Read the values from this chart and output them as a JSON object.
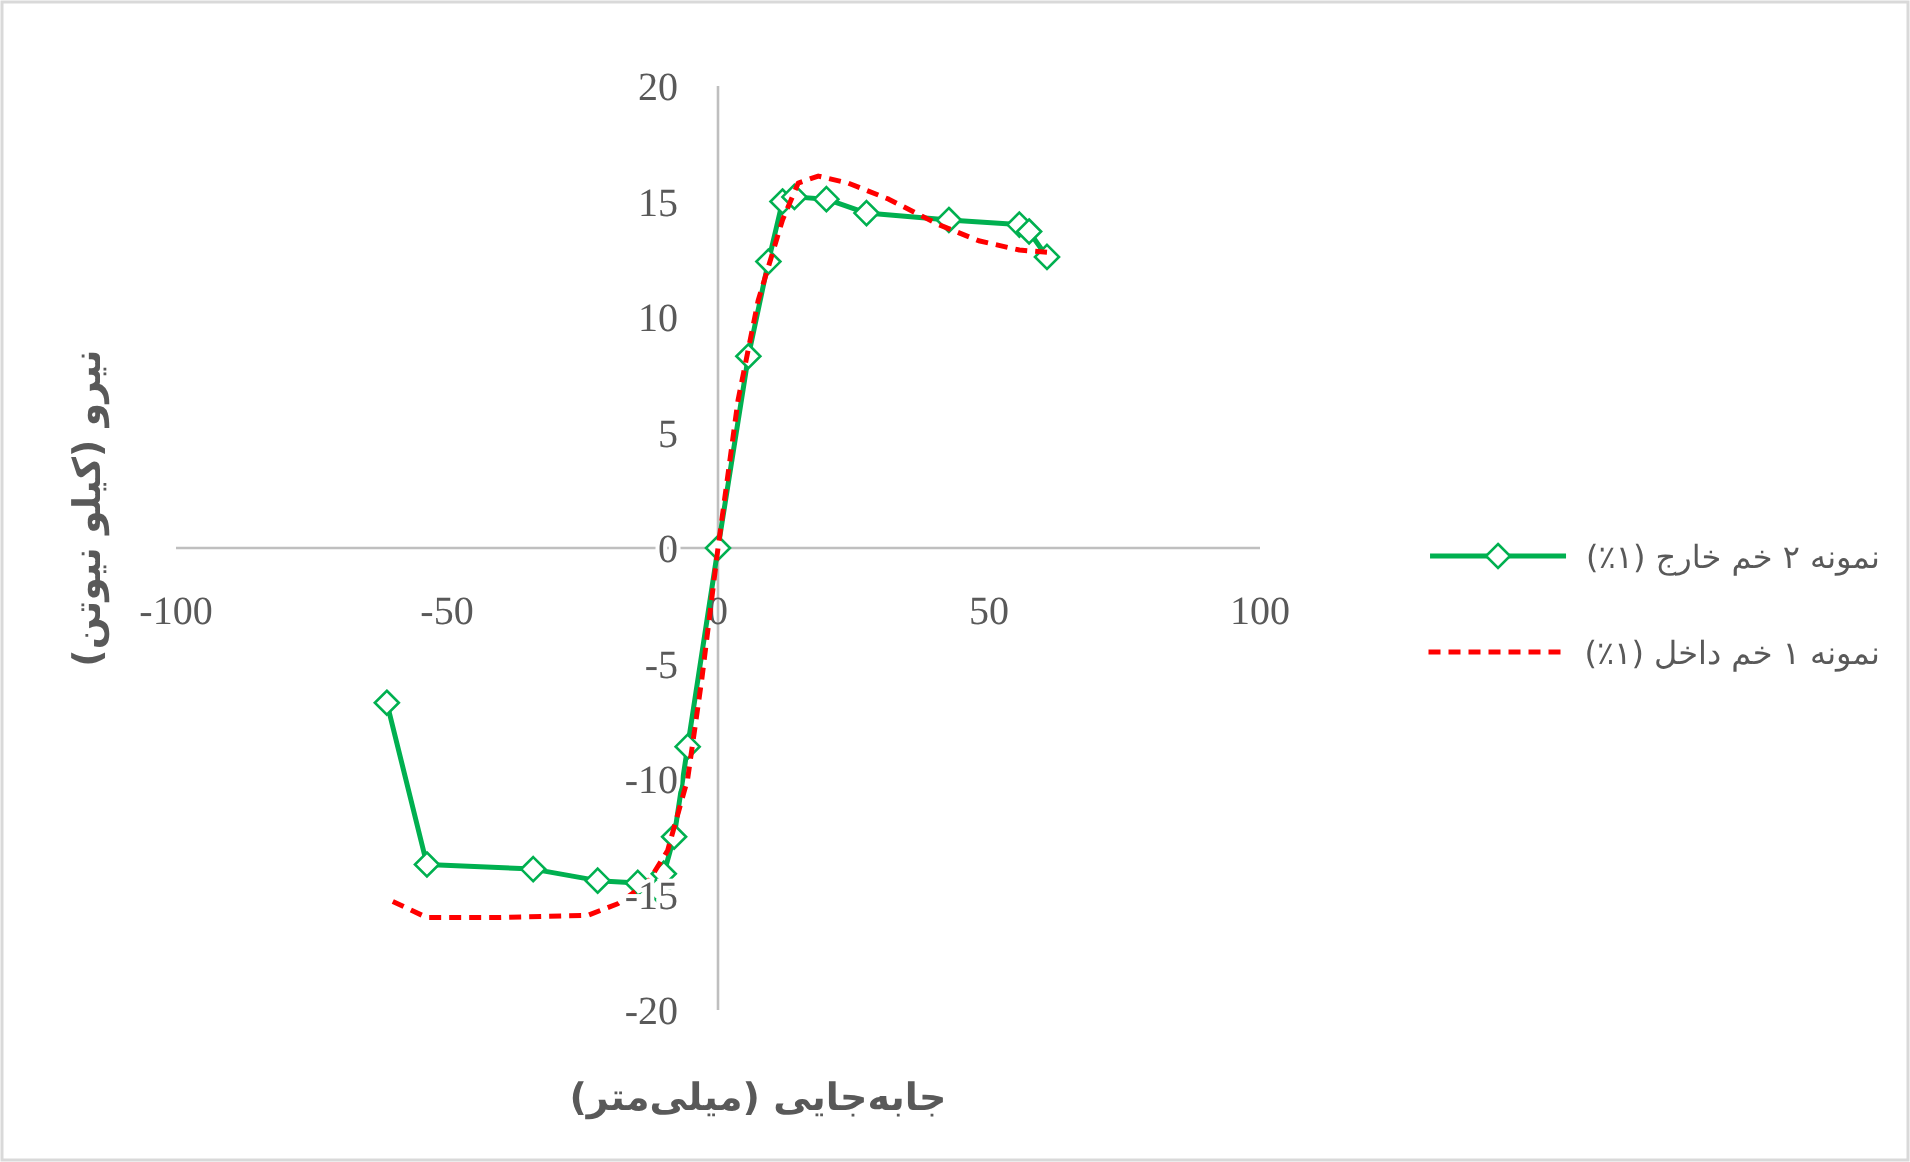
{
  "chart_data": {
    "type": "line",
    "xlabel": "جابه‌جایی (میلی‌متر)",
    "ylabel": "نیرو (کیلو نیوتن)",
    "xlim": [
      -100,
      100
    ],
    "xticks": [
      -100,
      -50,
      0,
      50,
      100
    ],
    "ylim": [
      -20,
      20
    ],
    "yticks": [
      -20,
      -15,
      -10,
      -5,
      0,
      5,
      10,
      15,
      20
    ],
    "grid": false,
    "legend": "right",
    "series": [
      {
        "name": "نمونه ۲ خم خارج (۱٪)",
        "color": "#00b050",
        "marker": "diamond",
        "line_style": "solid",
        "x": [
          -61.1,
          -53.7,
          -34.1,
          -22.2,
          -14.8,
          -11.1,
          -10,
          -8.1,
          -5.6,
          0,
          5.6,
          9.3,
          11.9,
          14.1,
          20,
          27.4,
          42.6,
          55.6,
          57.4,
          60.7
        ],
        "values": [
          -6.7,
          -13.7,
          -13.9,
          -14.4,
          -14.5,
          -14.8,
          -14.1,
          -12.5,
          -8.6,
          0,
          8.3,
          12.4,
          15.0,
          15.2,
          15.1,
          14.5,
          14.2,
          14.0,
          13.7,
          12.6
        ]
      },
      {
        "name": "نمونه ۱ خم داخل (۱٪)",
        "color": "#ff0000",
        "marker": "none",
        "line_style": "dashed",
        "x": [
          -60,
          -53.7,
          -40.7,
          -24,
          -18.5,
          -13,
          -9.3,
          -5.6,
          -3,
          0,
          3.7,
          7.4,
          11.9,
          14.8,
          18.5,
          24,
          31.5,
          40.7,
          48.1,
          55.6,
          60.7
        ],
        "values": [
          -15.3,
          -16.0,
          -16.0,
          -15.9,
          -15.4,
          -14.5,
          -13.1,
          -10.0,
          -5.7,
          0,
          6.4,
          10.7,
          14.2,
          15.8,
          16.1,
          15.8,
          15.1,
          14.0,
          13.3,
          12.9,
          12.8
        ]
      }
    ]
  }
}
